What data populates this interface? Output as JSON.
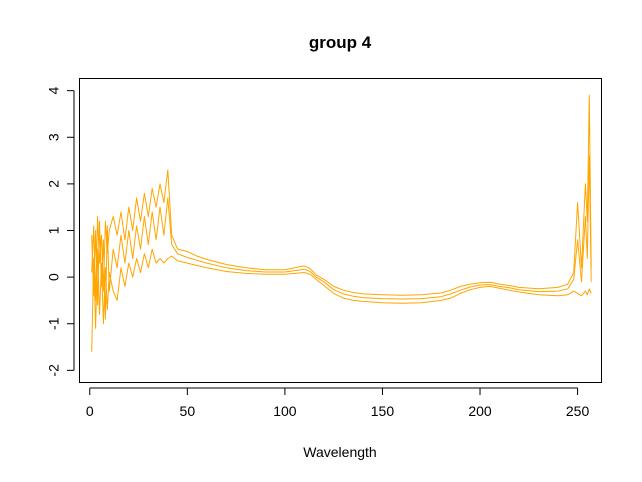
{
  "chart_data": {
    "type": "line",
    "title": "group 4",
    "xlabel": "Wavelength",
    "ylabel": "",
    "xlim": [
      -5,
      262
    ],
    "ylim": [
      -2.25,
      4.25
    ],
    "x_ticks": [
      0,
      50,
      100,
      150,
      200,
      250
    ],
    "y_ticks": [
      -2,
      -1,
      0,
      1,
      2,
      3,
      4
    ],
    "grid": false,
    "legend": "none",
    "series_color": "#FFA500",
    "series": [
      {
        "x": [
          1,
          2,
          3,
          4,
          5,
          6,
          7,
          8,
          9,
          10,
          12,
          14,
          16,
          18,
          20,
          22,
          24,
          26,
          28,
          30,
          32,
          34,
          36,
          38,
          40,
          42,
          45,
          50,
          55,
          60,
          70,
          80,
          90,
          100,
          105,
          110,
          113,
          116,
          120,
          125,
          130,
          135,
          140,
          150,
          160,
          170,
          180,
          185,
          190,
          195,
          200,
          205,
          210,
          215,
          220,
          230,
          240,
          245,
          248,
          250,
          252,
          254,
          255,
          256,
          257
        ],
        "values": [
          0.1,
          1.1,
          -0.5,
          1.3,
          0.3,
          0.9,
          -0.3,
          1.2,
          0.5,
          1.0,
          1.3,
          0.9,
          1.4,
          0.8,
          1.5,
          1.0,
          1.7,
          1.2,
          1.8,
          1.3,
          1.9,
          1.5,
          2.0,
          1.6,
          2.3,
          0.9,
          0.6,
          0.55,
          0.45,
          0.38,
          0.27,
          0.2,
          0.16,
          0.16,
          0.2,
          0.24,
          0.18,
          0.05,
          -0.05,
          -0.2,
          -0.28,
          -0.33,
          -0.36,
          -0.38,
          -0.39,
          -0.38,
          -0.34,
          -0.28,
          -0.2,
          -0.15,
          -0.12,
          -0.11,
          -0.15,
          -0.18,
          -0.22,
          -0.25,
          -0.22,
          -0.15,
          0.1,
          1.6,
          0.2,
          2.0,
          1.2,
          3.9,
          0.2
        ]
      },
      {
        "x": [
          1,
          2,
          3,
          4,
          5,
          6,
          7,
          8,
          9,
          10,
          12,
          14,
          16,
          18,
          20,
          22,
          24,
          26,
          28,
          30,
          32,
          34,
          36,
          38,
          40,
          42,
          45,
          50,
          55,
          60,
          70,
          80,
          90,
          100,
          105,
          110,
          113,
          116,
          120,
          125,
          130,
          135,
          140,
          150,
          160,
          170,
          180,
          185,
          190,
          195,
          200,
          205,
          210,
          215,
          220,
          230,
          240,
          245,
          248,
          250,
          252,
          254,
          255,
          256,
          257
        ],
        "values": [
          -1.6,
          0.4,
          -1.1,
          0.6,
          -0.8,
          0.3,
          -1.0,
          0.2,
          -0.7,
          0.1,
          -0.3,
          -0.5,
          0.2,
          -0.2,
          0.3,
          0.0,
          0.4,
          0.1,
          0.5,
          0.2,
          0.6,
          0.3,
          0.4,
          0.3,
          0.4,
          0.45,
          0.35,
          0.3,
          0.25,
          0.2,
          0.12,
          0.08,
          0.06,
          0.06,
          0.08,
          0.1,
          0.06,
          -0.05,
          -0.18,
          -0.35,
          -0.45,
          -0.5,
          -0.52,
          -0.55,
          -0.56,
          -0.55,
          -0.5,
          -0.45,
          -0.35,
          -0.27,
          -0.22,
          -0.2,
          -0.24,
          -0.28,
          -0.32,
          -0.38,
          -0.4,
          -0.38,
          -0.3,
          -0.35,
          -0.4,
          -0.3,
          -0.38,
          -0.25,
          -0.35
        ]
      },
      {
        "x": [
          1,
          2,
          3,
          4,
          5,
          6,
          7,
          8,
          9,
          10,
          12,
          14,
          16,
          18,
          20,
          22,
          24,
          26,
          28,
          30,
          32,
          34,
          36,
          38,
          40,
          42,
          45,
          50,
          55,
          60,
          70,
          80,
          90,
          100,
          105,
          110,
          113,
          116,
          120,
          125,
          130,
          135,
          140,
          150,
          160,
          170,
          180,
          185,
          190,
          195,
          200,
          205,
          210,
          215,
          220,
          230,
          240,
          245,
          248,
          250,
          252,
          254,
          255,
          256,
          257
        ],
        "values": [
          0.9,
          -0.4,
          1.0,
          -0.6,
          1.2,
          -0.2,
          0.8,
          -0.9,
          1.1,
          -0.3,
          0.6,
          0.2,
          0.9,
          0.3,
          1.0,
          0.4,
          1.1,
          0.6,
          1.3,
          0.7,
          1.4,
          0.8,
          1.5,
          0.9,
          1.7,
          0.7,
          0.5,
          0.42,
          0.36,
          0.3,
          0.2,
          0.14,
          0.11,
          0.11,
          0.14,
          0.17,
          0.12,
          0.0,
          -0.1,
          -0.27,
          -0.36,
          -0.41,
          -0.44,
          -0.46,
          -0.47,
          -0.46,
          -0.42,
          -0.36,
          -0.28,
          -0.21,
          -0.17,
          -0.16,
          -0.2,
          -0.23,
          -0.27,
          -0.31,
          -0.3,
          -0.25,
          -0.05,
          0.8,
          -0.1,
          1.3,
          0.4,
          2.6,
          -0.1
        ]
      }
    ]
  }
}
